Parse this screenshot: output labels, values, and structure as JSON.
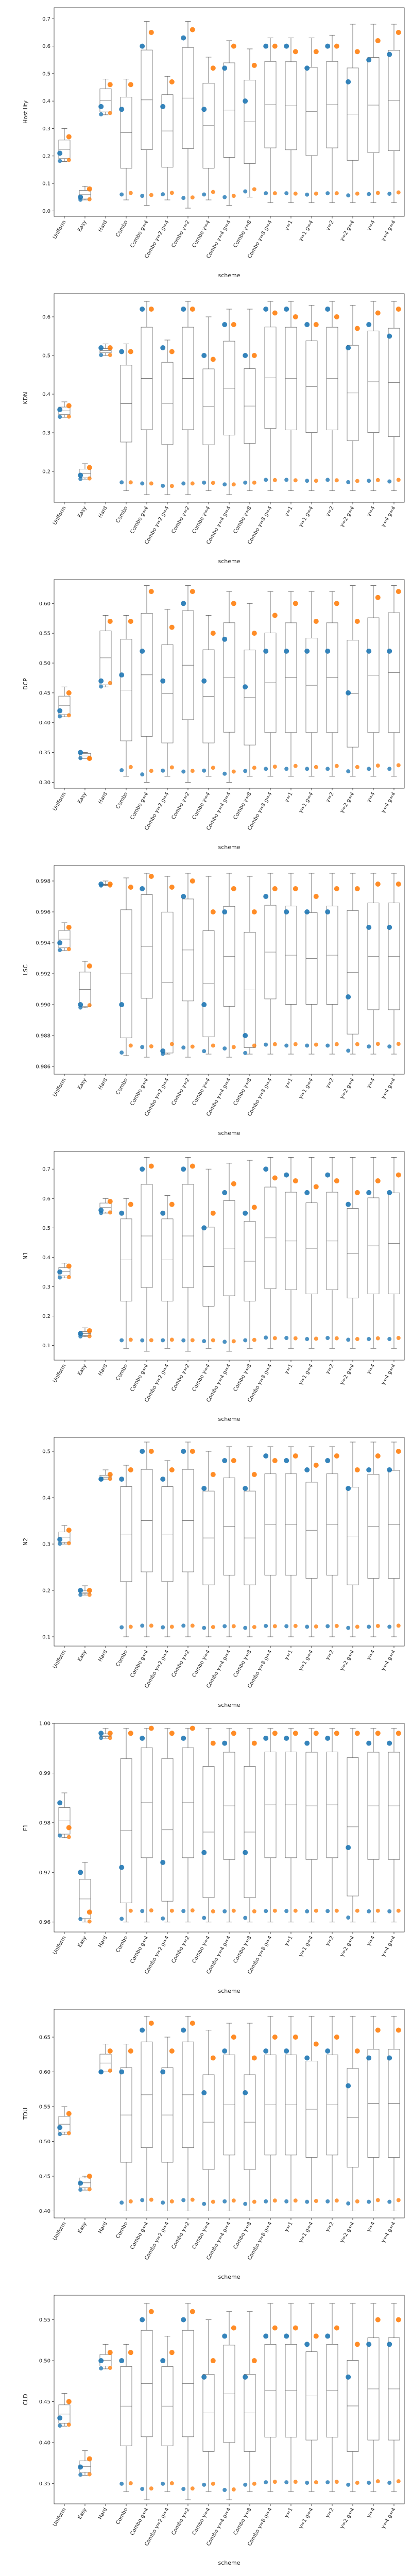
{
  "chart_data": {
    "type": "box",
    "categories": [
      "Uniform",
      "Easy",
      "Hard",
      "Combo",
      "Combo g=4",
      "Combo γ=2 g=4",
      "Combo γ=2",
      "Combo γ=4",
      "Combo γ=4 g=4",
      "Combo γ=8",
      "Combo γ=8 g=4",
      "γ=1",
      "γ=1 g=4",
      "γ=2",
      "γ=2 g=4",
      "γ=4",
      "γ=4 g=4"
    ],
    "xlabel": "scheme",
    "series_colors": {
      "a": "#1f77b4",
      "b": "#ff7f0e"
    },
    "panels": [
      {
        "ylabel": "Hostility",
        "ylim": [
          -0.02,
          0.74
        ],
        "yticks": [
          "0.0",
          "0.1",
          "0.2",
          "0.3",
          "0.4",
          "0.5",
          "0.6",
          "0.7"
        ],
        "a": [
          0.21,
          0.05,
          0.38,
          0.37,
          0.6,
          0.38,
          0.63,
          0.37,
          0.52,
          0.4,
          0.6,
          0.6,
          0.52,
          0.6,
          0.47,
          0.55,
          0.57
        ],
        "b": [
          0.27,
          0.08,
          0.46,
          0.46,
          0.65,
          0.47,
          0.66,
          0.52,
          0.6,
          0.53,
          0.6,
          0.58,
          0.58,
          0.6,
          0.58,
          0.62,
          0.65
        ],
        "lo": [
          0.18,
          0.04,
          0.35,
          0.04,
          0.02,
          0.04,
          0.01,
          0.04,
          0.02,
          0.05,
          0.03,
          0.03,
          0.03,
          0.03,
          0.03,
          0.03,
          0.03
        ],
        "hi": [
          0.3,
          0.09,
          0.48,
          0.48,
          0.69,
          0.49,
          0.69,
          0.56,
          0.62,
          0.59,
          0.63,
          0.63,
          0.63,
          0.64,
          0.68,
          0.68,
          0.68
        ]
      },
      {
        "ylabel": "KDN",
        "ylim": [
          0.12,
          0.66
        ],
        "yticks": [
          "0.2",
          "0.3",
          "0.4",
          "0.5",
          "0.6"
        ],
        "a": [
          0.36,
          0.19,
          0.52,
          0.51,
          0.62,
          0.52,
          0.62,
          0.5,
          0.58,
          0.5,
          0.62,
          0.62,
          0.58,
          0.62,
          0.52,
          0.58,
          0.55
        ],
        "b": [
          0.37,
          0.21,
          0.52,
          0.51,
          0.62,
          0.51,
          0.62,
          0.49,
          0.58,
          0.5,
          0.61,
          0.6,
          0.58,
          0.6,
          0.57,
          0.61,
          0.62
        ],
        "lo": [
          0.34,
          0.18,
          0.5,
          0.15,
          0.14,
          0.14,
          0.14,
          0.15,
          0.14,
          0.15,
          0.15,
          0.15,
          0.15,
          0.15,
          0.15,
          0.15,
          0.15
        ],
        "hi": [
          0.38,
          0.22,
          0.53,
          0.53,
          0.64,
          0.54,
          0.64,
          0.6,
          0.62,
          0.62,
          0.64,
          0.64,
          0.63,
          0.64,
          0.63,
          0.64,
          0.64
        ]
      },
      {
        "ylabel": "DCP",
        "ylim": [
          0.29,
          0.64
        ],
        "yticks": [
          "0.30",
          "0.35",
          "0.40",
          "0.45",
          "0.50",
          "0.55",
          "0.60"
        ],
        "a": [
          0.42,
          0.35,
          0.47,
          0.48,
          0.52,
          0.47,
          0.6,
          0.47,
          0.54,
          0.46,
          0.52,
          0.52,
          0.52,
          0.52,
          0.45,
          0.52,
          0.52
        ],
        "b": [
          0.45,
          0.34,
          0.57,
          0.57,
          0.62,
          0.56,
          0.62,
          0.55,
          0.6,
          0.55,
          0.58,
          0.6,
          0.57,
          0.6,
          0.57,
          0.61,
          0.62
        ],
        "lo": [
          0.41,
          0.34,
          0.46,
          0.31,
          0.3,
          0.31,
          0.3,
          0.31,
          0.3,
          0.31,
          0.31,
          0.31,
          0.31,
          0.31,
          0.31,
          0.31,
          0.31
        ],
        "hi": [
          0.46,
          0.35,
          0.58,
          0.58,
          0.63,
          0.59,
          0.63,
          0.58,
          0.62,
          0.6,
          0.62,
          0.62,
          0.62,
          0.62,
          0.63,
          0.63,
          0.63
        ]
      },
      {
        "ylabel": "LSC",
        "ylim": [
          0.9855,
          0.999
        ],
        "yticks": [
          "0.986",
          "0.988",
          "0.990",
          "0.992",
          "0.994",
          "0.996",
          "0.998"
        ],
        "a": [
          0.994,
          0.99,
          0.9978,
          0.99,
          0.9975,
          0.987,
          0.997,
          0.99,
          0.996,
          0.988,
          0.997,
          0.996,
          0.996,
          0.996,
          0.9905,
          0.995,
          0.995
        ],
        "b": [
          0.995,
          0.9925,
          0.9978,
          0.9976,
          0.9983,
          0.9976,
          0.998,
          0.996,
          0.9975,
          0.996,
          0.9975,
          0.9975,
          0.997,
          0.9975,
          0.9975,
          0.9978,
          0.9978
        ],
        "lo": [
          0.9935,
          0.9898,
          0.9977,
          0.9867,
          0.9866,
          0.9868,
          0.9866,
          0.9868,
          0.9866,
          0.9868,
          0.9868,
          0.9868,
          0.9868,
          0.9868,
          0.9868,
          0.9868,
          0.9868
        ],
        "hi": [
          0.9953,
          0.9928,
          0.998,
          0.9982,
          0.9985,
          0.9983,
          0.9985,
          0.9983,
          0.9985,
          0.9983,
          0.9985,
          0.9985,
          0.9985,
          0.9985,
          0.9985,
          0.9985,
          0.9985
        ]
      },
      {
        "ylabel": "N1",
        "ylim": [
          0.05,
          0.76
        ],
        "yticks": [
          "0.1",
          "0.2",
          "0.3",
          "0.4",
          "0.5",
          "0.6",
          "0.7"
        ],
        "a": [
          0.35,
          0.14,
          0.56,
          0.55,
          0.7,
          0.55,
          0.7,
          0.5,
          0.62,
          0.55,
          0.7,
          0.68,
          0.62,
          0.68,
          0.58,
          0.62,
          0.62
        ],
        "b": [
          0.37,
          0.15,
          0.59,
          0.58,
          0.71,
          0.58,
          0.71,
          0.55,
          0.65,
          0.57,
          0.67,
          0.66,
          0.64,
          0.66,
          0.62,
          0.66,
          0.68
        ],
        "lo": [
          0.33,
          0.13,
          0.55,
          0.09,
          0.08,
          0.09,
          0.08,
          0.09,
          0.08,
          0.09,
          0.09,
          0.09,
          0.09,
          0.09,
          0.09,
          0.09,
          0.09
        ],
        "hi": [
          0.38,
          0.16,
          0.6,
          0.6,
          0.74,
          0.61,
          0.74,
          0.7,
          0.72,
          0.73,
          0.74,
          0.74,
          0.74,
          0.74,
          0.74,
          0.74,
          0.74
        ]
      },
      {
        "ylabel": "N2",
        "ylim": [
          0.08,
          0.53
        ],
        "yticks": [
          "0.1",
          "0.2",
          "0.3",
          "0.4",
          "0.5"
        ],
        "a": [
          0.31,
          0.2,
          0.44,
          0.44,
          0.5,
          0.44,
          0.5,
          0.42,
          0.48,
          0.42,
          0.49,
          0.48,
          0.46,
          0.48,
          0.42,
          0.46,
          0.46
        ],
        "b": [
          0.33,
          0.2,
          0.45,
          0.46,
          0.5,
          0.46,
          0.5,
          0.45,
          0.48,
          0.45,
          0.48,
          0.49,
          0.47,
          0.49,
          0.46,
          0.49,
          0.5
        ],
        "lo": [
          0.3,
          0.19,
          0.44,
          0.1,
          0.1,
          0.1,
          0.1,
          0.1,
          0.1,
          0.1,
          0.1,
          0.1,
          0.1,
          0.1,
          0.1,
          0.1,
          0.1
        ],
        "hi": [
          0.34,
          0.21,
          0.46,
          0.47,
          0.52,
          0.48,
          0.52,
          0.5,
          0.51,
          0.51,
          0.51,
          0.51,
          0.51,
          0.51,
          0.52,
          0.52,
          0.52
        ]
      },
      {
        "ylabel": "F1",
        "ylim": [
          0.958,
          1.0
        ],
        "yticks": [
          "0.96",
          "0.97",
          "0.98",
          "0.99",
          "1.00"
        ],
        "a": [
          0.984,
          0.97,
          0.998,
          0.971,
          0.997,
          0.972,
          0.997,
          0.974,
          0.996,
          0.974,
          0.997,
          0.997,
          0.996,
          0.997,
          0.975,
          0.996,
          0.996
        ],
        "b": [
          0.979,
          0.962,
          0.998,
          0.998,
          0.999,
          0.998,
          0.999,
          0.996,
          0.998,
          0.996,
          0.998,
          0.998,
          0.998,
          0.998,
          0.998,
          0.998,
          0.998
        ],
        "lo": [
          0.977,
          0.96,
          0.997,
          0.96,
          0.96,
          0.96,
          0.96,
          0.96,
          0.96,
          0.96,
          0.96,
          0.96,
          0.96,
          0.96,
          0.96,
          0.96,
          0.96
        ],
        "hi": [
          0.986,
          0.972,
          0.999,
          0.999,
          0.999,
          0.999,
          0.999,
          0.999,
          0.999,
          0.999,
          0.999,
          0.999,
          0.999,
          0.999,
          0.999,
          0.999,
          0.999
        ]
      },
      {
        "ylabel": "TDU",
        "ylim": [
          0.39,
          0.69
        ],
        "yticks": [
          "0.40",
          "0.45",
          "0.50",
          "0.55",
          "0.60",
          "0.65"
        ],
        "a": [
          0.52,
          0.44,
          0.6,
          0.6,
          0.66,
          0.6,
          0.66,
          0.57,
          0.63,
          0.57,
          0.63,
          0.63,
          0.62,
          0.63,
          0.58,
          0.62,
          0.62
        ],
        "b": [
          0.54,
          0.45,
          0.63,
          0.63,
          0.67,
          0.63,
          0.67,
          0.62,
          0.65,
          0.62,
          0.65,
          0.65,
          0.64,
          0.65,
          0.63,
          0.66,
          0.66
        ],
        "lo": [
          0.51,
          0.43,
          0.6,
          0.4,
          0.4,
          0.4,
          0.4,
          0.4,
          0.4,
          0.4,
          0.4,
          0.4,
          0.4,
          0.4,
          0.4,
          0.4,
          0.4
        ],
        "hi": [
          0.55,
          0.45,
          0.64,
          0.64,
          0.68,
          0.65,
          0.68,
          0.66,
          0.67,
          0.67,
          0.68,
          0.68,
          0.68,
          0.68,
          0.68,
          0.68,
          0.68
        ]
      },
      {
        "ylabel": "CLD",
        "ylim": [
          0.325,
          0.58
        ],
        "yticks": [
          "0.35",
          "0.40",
          "0.45",
          "0.50",
          "0.55"
        ],
        "a": [
          0.43,
          0.37,
          0.5,
          0.5,
          0.55,
          0.5,
          0.55,
          0.48,
          0.53,
          0.48,
          0.53,
          0.53,
          0.52,
          0.53,
          0.48,
          0.52,
          0.52
        ],
        "b": [
          0.45,
          0.38,
          0.51,
          0.51,
          0.56,
          0.51,
          0.56,
          0.5,
          0.54,
          0.5,
          0.54,
          0.54,
          0.53,
          0.54,
          0.52,
          0.55,
          0.55
        ],
        "lo": [
          0.42,
          0.36,
          0.49,
          0.34,
          0.33,
          0.34,
          0.33,
          0.34,
          0.33,
          0.34,
          0.34,
          0.34,
          0.34,
          0.34,
          0.34,
          0.34,
          0.34
        ],
        "hi": [
          0.46,
          0.39,
          0.52,
          0.52,
          0.57,
          0.53,
          0.57,
          0.55,
          0.56,
          0.56,
          0.57,
          0.57,
          0.57,
          0.57,
          0.57,
          0.57,
          0.57
        ]
      }
    ]
  }
}
